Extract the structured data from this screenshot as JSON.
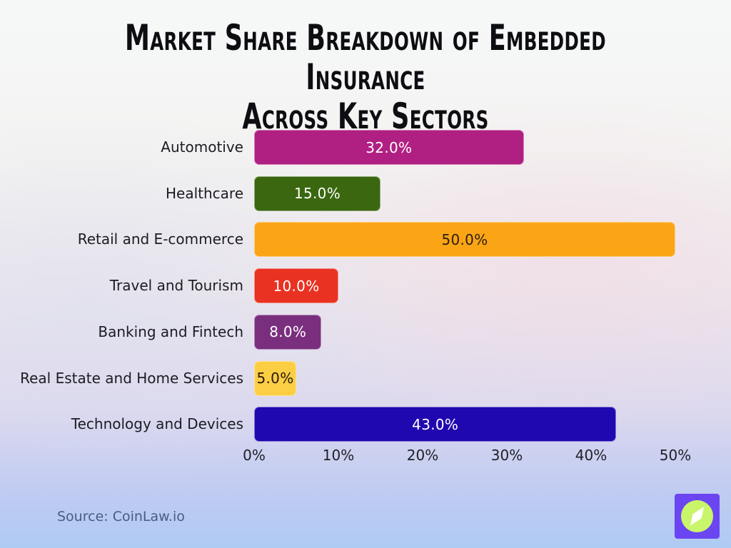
{
  "title": "Market Share Breakdown of Embedded Insurance Across Key Sectors",
  "title_lines": [
    "Market Share Breakdown of Embedded Insurance",
    "Across Key Sectors"
  ],
  "source_text": "Source: CoinLaw.io",
  "colors": {
    "title_text": "#0d0d12",
    "category_label_text": "#1c1c22",
    "axis_tick_text": "#202027",
    "source_text": "#4a5c7e",
    "logo_background": "#6B45F2",
    "logo_circle": "#C9F56B",
    "logo_needle": "#FFFFFF"
  },
  "chart_data": {
    "type": "bar",
    "orientation": "horizontal",
    "title": "Market Share Breakdown of Embedded Insurance Across Key Sectors",
    "categories": [
      "Automotive",
      "Healthcare",
      "Retail and E-commerce",
      "Travel and Tourism",
      "Banking and Fintech",
      "Real Estate and Home Services",
      "Technology and Devices"
    ],
    "values": [
      32.0,
      15.0,
      50.0,
      10.0,
      8.0,
      5.0,
      43.0
    ],
    "value_labels": [
      "32.0%",
      "15.0%",
      "50.0%",
      "10.0%",
      "8.0%",
      "5.0%",
      "43.0%"
    ],
    "bar_colors": [
      "#B01F82",
      "#3A670F",
      "#FBA516",
      "#E93222",
      "#7A2F7E",
      "#FCCE44",
      "#2008B0"
    ],
    "value_label_colors": [
      "#FFFFFF",
      "#FFFFFF",
      "#2A1D10",
      "#FFFFFF",
      "#FFFFFF",
      "#26190B",
      "#FFFFFF"
    ],
    "xlabel": "",
    "ylabel": "",
    "x_ticks": [
      "0%",
      "10%",
      "20%",
      "30%",
      "40%",
      "50%"
    ],
    "x_tick_values": [
      0,
      10,
      20,
      30,
      40,
      50
    ],
    "xlim": [
      0,
      50
    ],
    "grid": false,
    "legend": "none"
  }
}
